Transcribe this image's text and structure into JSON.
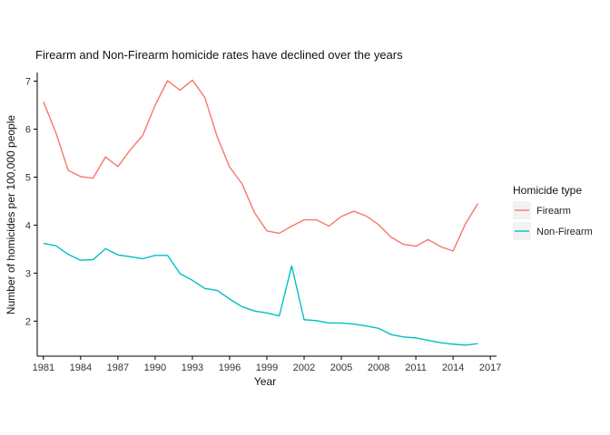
{
  "chart_data": {
    "type": "line",
    "title": "Firearm and Non-Firearm homicide rates have declined over the years",
    "xlabel": "Year",
    "ylabel": "Number of homicides per 100,000 people",
    "xlim": [
      1980.5,
      2017.5
    ],
    "ylim": [
      1.27,
      7.18
    ],
    "x_ticks": [
      1981,
      1984,
      1987,
      1990,
      1993,
      1996,
      1999,
      2002,
      2005,
      2008,
      2011,
      2014,
      2017
    ],
    "y_ticks": [
      2,
      3,
      4,
      5,
      6,
      7
    ],
    "grid": false,
    "legend": {
      "title": "Homicide type",
      "position": "right"
    },
    "x": [
      1981,
      1982,
      1983,
      1984,
      1985,
      1986,
      1987,
      1988,
      1989,
      1990,
      1991,
      1992,
      1993,
      1994,
      1995,
      1996,
      1997,
      1998,
      1999,
      2000,
      2001,
      2002,
      2003,
      2004,
      2005,
      2006,
      2007,
      2008,
      2009,
      2010,
      2011,
      2012,
      2013,
      2014,
      2015,
      2016
    ],
    "series": [
      {
        "name": "Firearm",
        "color": "#F8766D",
        "values": [
          6.57,
          5.93,
          5.14,
          5.01,
          4.98,
          5.42,
          5.22,
          5.57,
          5.87,
          6.5,
          7.01,
          6.81,
          7.02,
          6.66,
          5.84,
          5.21,
          4.86,
          4.26,
          3.88,
          3.83,
          3.98,
          4.11,
          4.11,
          3.98,
          4.18,
          4.29,
          4.19,
          4.01,
          3.75,
          3.6,
          3.56,
          3.7,
          3.55,
          3.46,
          4.03,
          4.45
        ]
      },
      {
        "name": "Non-Firearm",
        "color": "#00BFC4",
        "values": [
          3.62,
          3.57,
          3.39,
          3.27,
          3.28,
          3.51,
          3.38,
          3.34,
          3.3,
          3.37,
          3.37,
          2.99,
          2.85,
          2.68,
          2.64,
          2.46,
          2.3,
          2.21,
          2.17,
          2.11,
          3.15,
          2.03,
          2.01,
          1.96,
          1.96,
          1.94,
          1.9,
          1.85,
          1.72,
          1.67,
          1.65,
          1.6,
          1.55,
          1.52,
          1.5,
          1.53
        ]
      }
    ]
  }
}
